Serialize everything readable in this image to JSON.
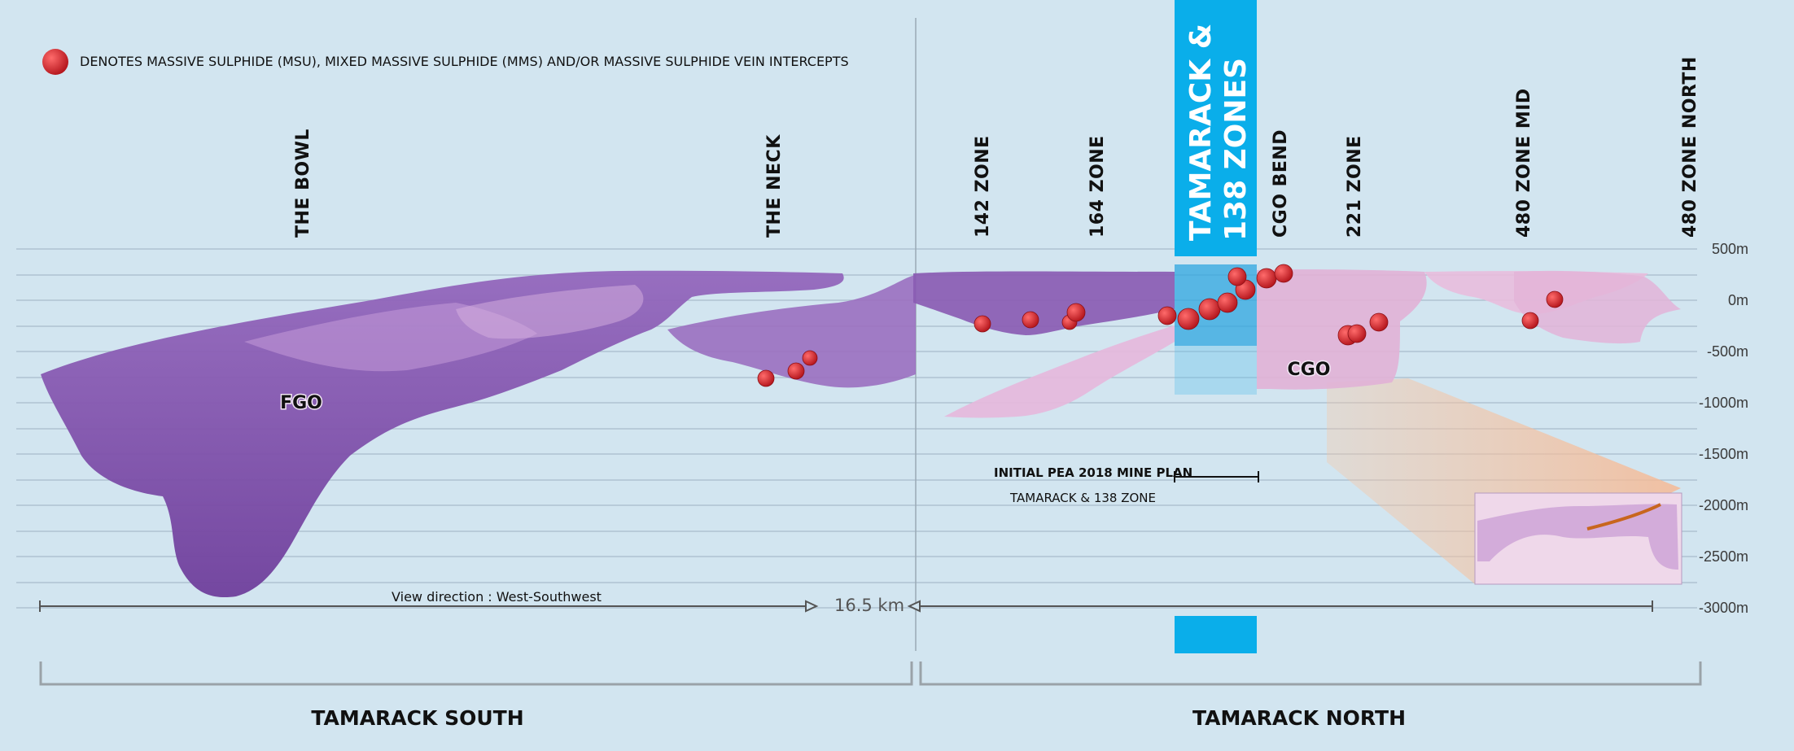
{
  "legend": {
    "text": "DENOTES MASSIVE SULPHIDE (MSU), MIXED MASSIVE SULPHIDE (MMS) AND/OR MASSIVE SULPHIDE VEIN INTERCEPTS",
    "marker_color": "#e3242b"
  },
  "zones": {
    "the_bowl": "THE BOWL",
    "the_neck": "THE NECK",
    "zone_142": "142 ZONE",
    "zone_164": "164 ZONE",
    "cgo_bend": "CGO BEND",
    "zone_221": "221 ZONE",
    "zone_480_mid": "480 ZONE MID",
    "zone_480_north": "480 ZONE NORTH"
  },
  "highlight": {
    "line1": "TAMARACK &",
    "line2": "138 ZONES",
    "color": "#0aaeea"
  },
  "depth_labels": [
    "500m",
    "0m",
    "-500m",
    "-1000m",
    "-1500m",
    "-2000m",
    "-2500m",
    "-3000m"
  ],
  "bodies": {
    "fgo": "FGO",
    "cgo": "CGO"
  },
  "mine_plan": {
    "title": "INITIAL PEA 2018 MINE PLAN",
    "subtitle": "TAMARACK & 138 ZONE"
  },
  "scale": {
    "view_direction": "View direction : West-Southwest",
    "length": "16.5 km"
  },
  "regions": {
    "south": "TAMARACK SOUTH",
    "north": "TAMARACK NORTH"
  },
  "colors": {
    "background": "#d2e5f0",
    "intrusion_dark": "#7e4fa6",
    "intrusion_pink": "#e3b4d8",
    "inset_wedge": "#f6c7a8"
  }
}
